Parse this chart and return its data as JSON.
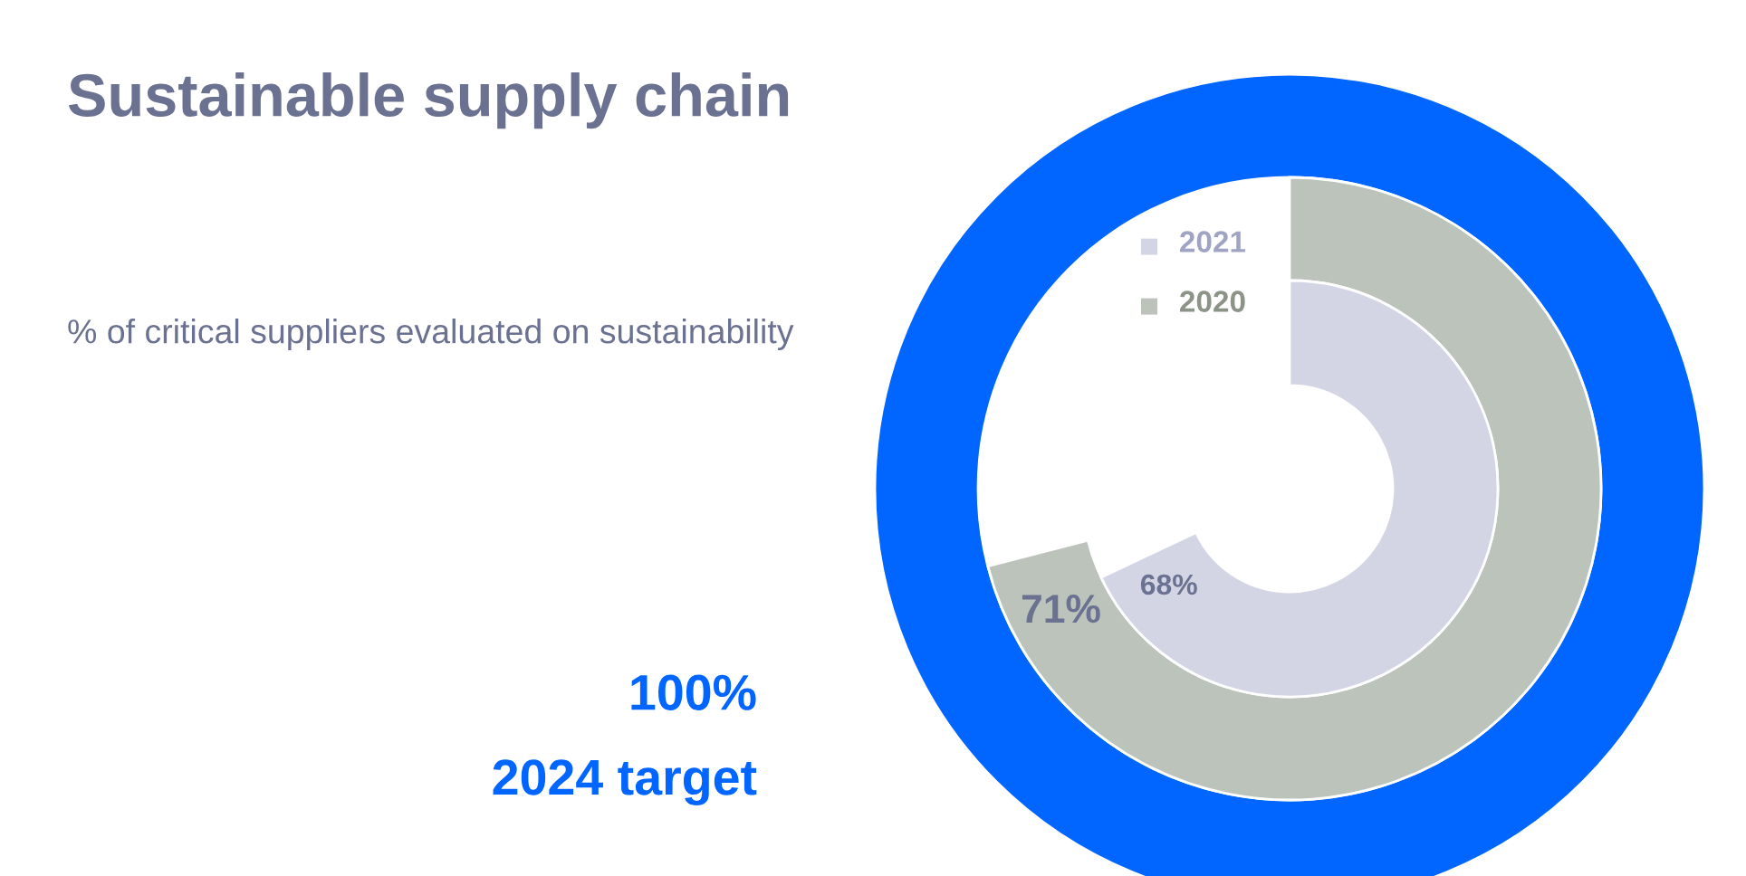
{
  "chart_data": {
    "type": "donut",
    "title": "Sustainable supply chain",
    "subtitle": "% of critical suppliers evaluated on sustainability",
    "legend": "top",
    "series": [
      {
        "name": "2024 target",
        "color": "#0066ff",
        "values": [
          100
        ],
        "value_labels": [
          "100%"
        ]
      },
      {
        "name": "2020",
        "color": "#bcc3bb",
        "values": [
          71
        ],
        "value_labels": [
          "71%"
        ]
      },
      {
        "name": "2021",
        "color": "#d3d5e4",
        "values": [
          68
        ],
        "value_labels": [
          "68%"
        ]
      }
    ]
  }
}
